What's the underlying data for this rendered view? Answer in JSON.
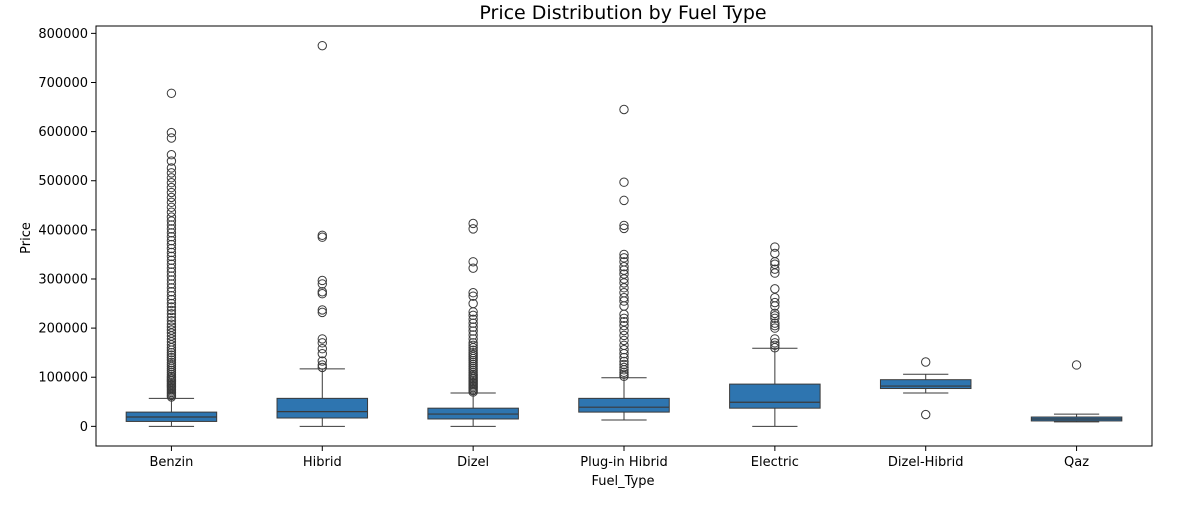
{
  "chart_data": {
    "type": "box",
    "title": "Price Distribution by Fuel Type",
    "xlabel": "Fuel_Type",
    "ylabel": "Price",
    "ylim": [
      -40000,
      815000
    ],
    "yticks": [
      0,
      100000,
      200000,
      300000,
      400000,
      500000,
      600000,
      700000,
      800000
    ],
    "ytick_labels": [
      "0",
      "100000",
      "200000",
      "300000",
      "400000",
      "500000",
      "600000",
      "700000",
      "800000"
    ],
    "grid": false,
    "box_color": "#2e75b0",
    "line_color": "#3a3a3a",
    "categories": [
      "Benzin",
      "Hibrid",
      "Dizel",
      "Plug-in Hibrid",
      "Electric",
      "Dizel-Hibrid",
      "Qaz"
    ],
    "boxes": [
      {
        "category": "Benzin",
        "whisker_low": 0,
        "q1": 10000,
        "median": 19000,
        "q3": 29000,
        "whisker_high": 57000,
        "outliers": [
          60000,
          63000,
          66000,
          69000,
          72000,
          75000,
          78000,
          81000,
          84000,
          87000,
          90000,
          93000,
          96000,
          99000,
          102000,
          106000,
          110000,
          114000,
          118000,
          122000,
          126000,
          130000,
          135000,
          140000,
          145000,
          150000,
          155000,
          160000,
          166000,
          172000,
          178000,
          184000,
          190000,
          196000,
          202000,
          208000,
          215000,
          222000,
          229000,
          236000,
          243000,
          250000,
          258000,
          266000,
          274000,
          282000,
          290000,
          298000,
          306000,
          314000,
          322000,
          330000,
          338000,
          346000,
          354000,
          362000,
          370000,
          378000,
          386000,
          394000,
          402000,
          410000,
          418000,
          426000,
          436000,
          446000,
          456000,
          466000,
          476000,
          486000,
          496000,
          506000,
          516000,
          526000,
          540000,
          553000,
          587000,
          598000,
          678000
        ]
      },
      {
        "category": "Hibrid",
        "whisker_low": 0,
        "q1": 17000,
        "median": 30000,
        "q3": 57000,
        "whisker_high": 117000,
        "outliers": [
          120000,
          125000,
          133000,
          148000,
          158000,
          170000,
          178000,
          232000,
          237000,
          270000,
          274000,
          290000,
          297000,
          385000,
          389000,
          775000
        ]
      },
      {
        "category": "Dizel",
        "whisker_low": 0,
        "q1": 15000,
        "median": 25000,
        "q3": 37000,
        "whisker_high": 68000,
        "outliers": [
          70000,
          73000,
          76000,
          79000,
          82000,
          85000,
          88000,
          91000,
          94000,
          97000,
          100000,
          103000,
          106000,
          110000,
          114000,
          118000,
          122000,
          126000,
          130000,
          134000,
          138000,
          142000,
          146000,
          150000,
          155000,
          160000,
          165000,
          170000,
          178000,
          186000,
          194000,
          202000,
          210000,
          218000,
          226000,
          233000,
          250000,
          265000,
          272000,
          322000,
          335000,
          402000,
          413000
        ]
      },
      {
        "category": "Plug-in Hibrid",
        "whisker_low": 13000,
        "q1": 29000,
        "median": 39000,
        "q3": 57000,
        "whisker_high": 99000,
        "outliers": [
          102000,
          106000,
          110000,
          115000,
          120000,
          126000,
          132000,
          140000,
          148000,
          156000,
          165000,
          175000,
          185000,
          195000,
          205000,
          213000,
          220000,
          228000,
          245000,
          255000,
          262000,
          272000,
          282000,
          292000,
          300000,
          310000,
          318000,
          325000,
          335000,
          343000,
          350000,
          403000,
          409000,
          460000,
          497000,
          645000
        ]
      },
      {
        "category": "Electric",
        "whisker_low": 0,
        "q1": 37000,
        "median": 49000,
        "q3": 86000,
        "whisker_high": 159000,
        "outliers": [
          160000,
          165000,
          170000,
          178000,
          200000,
          205000,
          210000,
          220000,
          225000,
          230000,
          245000,
          252000,
          262000,
          280000,
          312000,
          320000,
          330000,
          335000,
          352000,
          365000
        ]
      },
      {
        "category": "Dizel-Hibrid",
        "whisker_low": 68000,
        "q1": 77000,
        "median": 82000,
        "q3": 95000,
        "whisker_high": 106000,
        "outliers": [
          24000,
          131000
        ]
      },
      {
        "category": "Qaz",
        "whisker_low": 9000,
        "q1": 11000,
        "median": 15000,
        "q3": 19000,
        "whisker_high": 25000,
        "outliers": [
          125000
        ]
      }
    ]
  }
}
